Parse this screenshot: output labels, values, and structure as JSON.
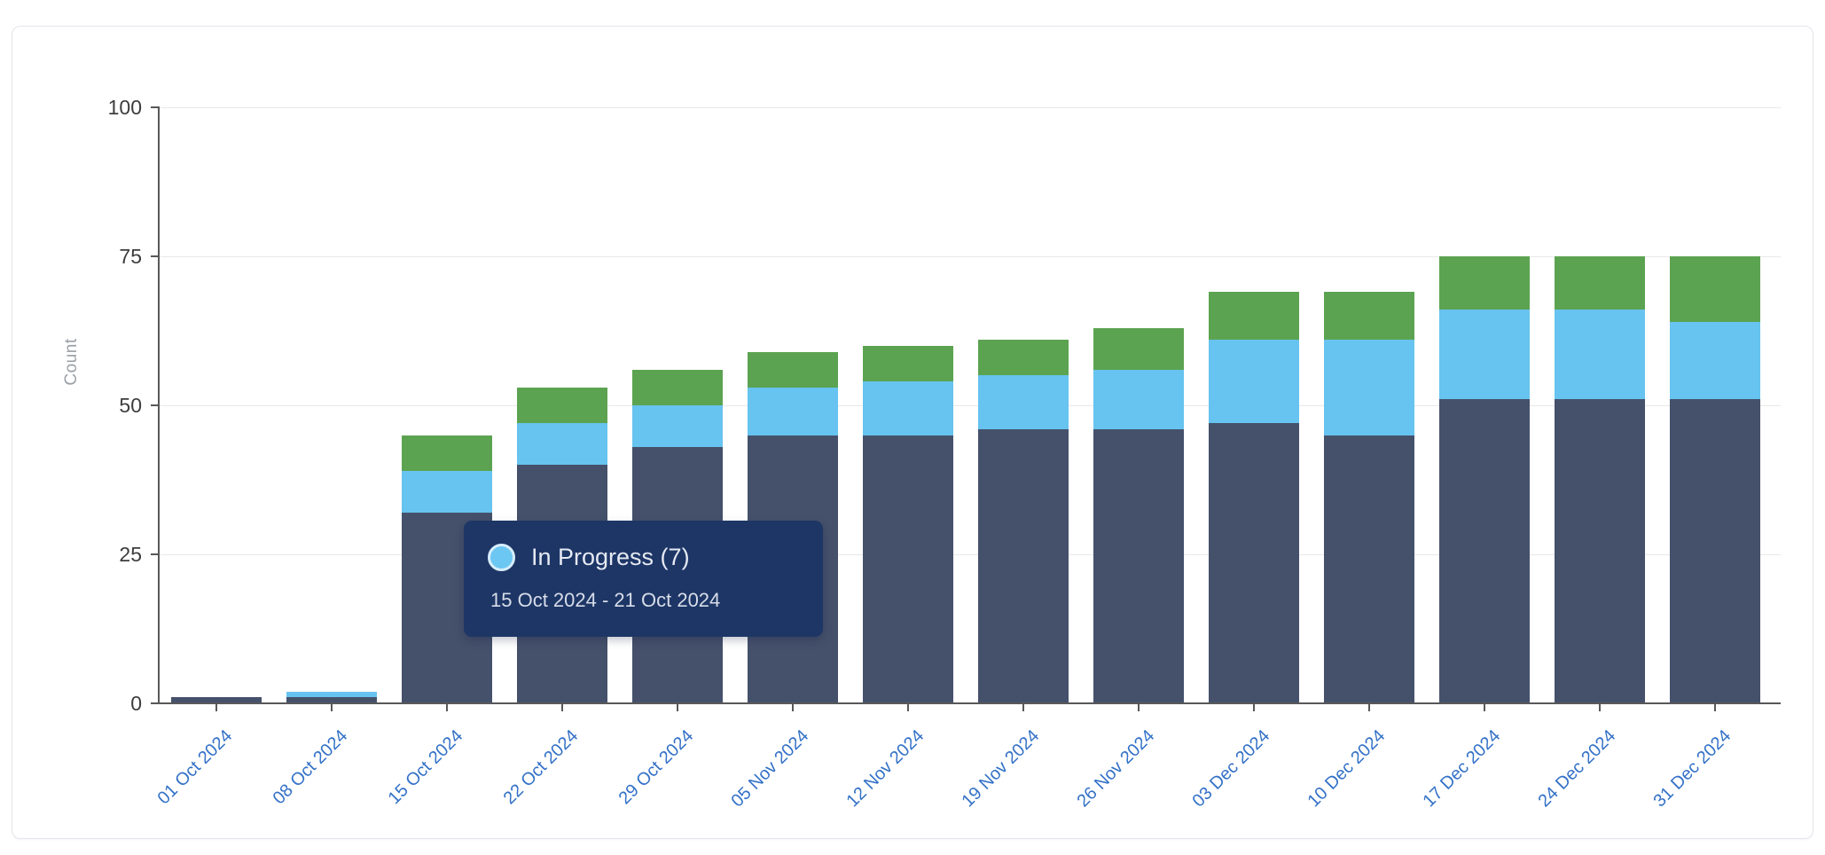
{
  "card": {
    "background": "#ffffff",
    "border_color": "#e4e5ec"
  },
  "chart_data": {
    "type": "bar",
    "stacked": true,
    "ylabel": "Count",
    "ylim": [
      0,
      100
    ],
    "yticks": [
      0,
      25,
      50,
      75,
      100
    ],
    "grid": true,
    "legend_position": "none",
    "categories": [
      "01 Oct 2024",
      "08 Oct 2024",
      "15 Oct 2024",
      "22 Oct 2024",
      "29 Oct 2024",
      "05 Nov 2024",
      "12 Nov 2024",
      "19 Nov 2024",
      "26 Nov 2024",
      "03 Dec 2024",
      "10 Dec 2024",
      "17 Dec 2024",
      "24 Dec 2024",
      "31 Dec 2024"
    ],
    "series": [
      {
        "name": "",
        "color": "#45516b",
        "values": [
          1,
          1,
          32,
          40,
          43,
          45,
          45,
          46,
          46,
          47,
          45,
          51,
          51,
          51
        ]
      },
      {
        "name": "In Progress",
        "color": "#67c3ef",
        "values": [
          0,
          1,
          7,
          7,
          7,
          8,
          9,
          9,
          10,
          14,
          16,
          15,
          15,
          13
        ]
      },
      {
        "name": "",
        "color": "#5ca351",
        "values": [
          0,
          0,
          6,
          6,
          6,
          6,
          6,
          6,
          7,
          8,
          8,
          9,
          9,
          11
        ]
      }
    ],
    "totals": [
      1,
      2,
      45,
      53,
      56,
      59,
      60,
      61,
      63,
      69,
      69,
      75,
      75,
      75
    ],
    "axis_color": "#58585a",
    "grid_color": "#e8e8e8",
    "x_label_color": "#3371c7",
    "y_tick_color": "#3d3d3d",
    "ylabel_color": "#9aa0a6"
  },
  "tooltip": {
    "title": "In Progress (7)",
    "date_range": "15 Oct 2024 - 21 Oct 2024",
    "background": "#1d3666",
    "marker_color": "#6cc7f2",
    "marker_ring_color": "#d8edfb",
    "title_color": "#e6e9f2",
    "subtitle_color": "#d8dde9"
  }
}
